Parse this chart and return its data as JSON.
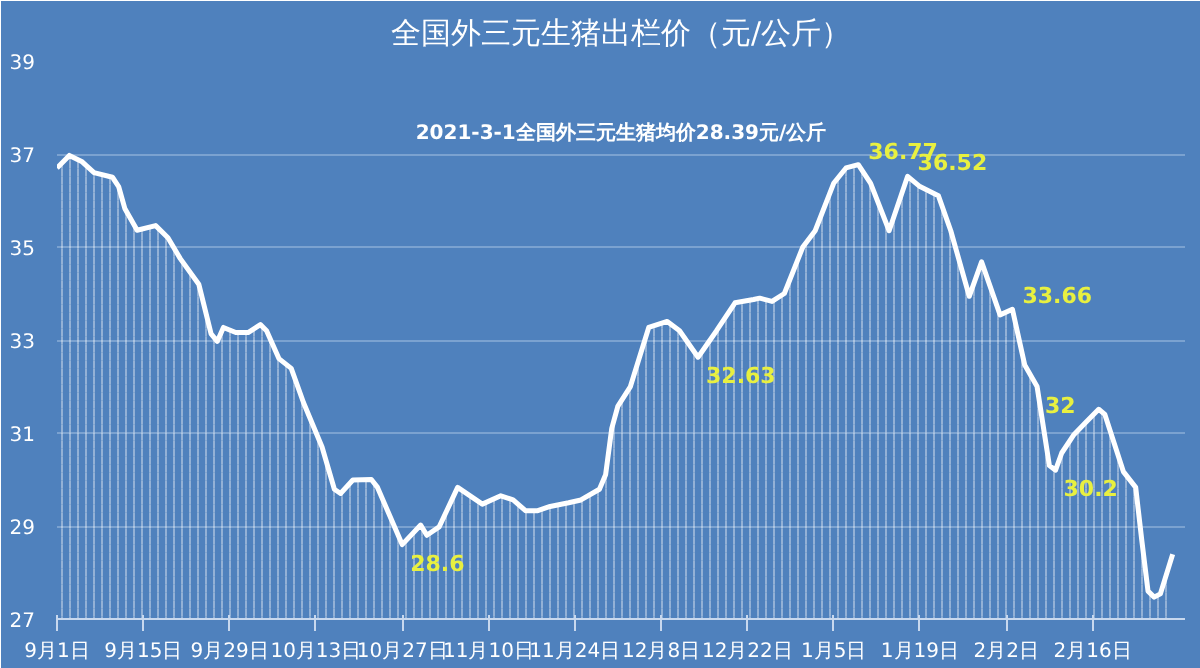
{
  "chart_data": {
    "type": "area",
    "title": "全国外三元生猪出栏价（元/公斤）",
    "annotations": [
      "2021-3-1全国外三元生猪均价28.39元/公斤",
      {
        "text": "28.6",
        "x": "2020-10-27",
        "y": 28.6
      },
      {
        "text": "32.63",
        "x": "2020-12-14",
        "y": 32.63
      },
      {
        "text": "36.77",
        "x": "2021-01-09",
        "y": 36.77
      },
      {
        "text": "36.52",
        "x": "2021-01-17",
        "y": 36.52
      },
      {
        "text": "33.66",
        "x": "2021-02-03",
        "y": 33.66
      },
      {
        "text": "32",
        "x": "2021-02-07",
        "y": 32
      },
      {
        "text": "30.2",
        "x": "2021-02-10",
        "y": 30.2
      }
    ],
    "x": [
      "2020-09-01",
      "2020-09-03",
      "2020-09-05",
      "2020-09-07",
      "2020-09-10",
      "2020-09-11",
      "2020-09-12",
      "2020-09-14",
      "2020-09-17",
      "2020-09-19",
      "2020-09-21",
      "2020-09-24",
      "2020-09-26",
      "2020-09-27",
      "2020-09-28",
      "2020-09-30",
      "2020-10-02",
      "2020-10-04",
      "2020-10-05",
      "2020-10-07",
      "2020-10-09",
      "2020-10-11",
      "2020-10-14",
      "2020-10-16",
      "2020-10-17",
      "2020-10-19",
      "2020-10-22",
      "2020-10-23",
      "2020-10-27",
      "2020-10-30",
      "2020-10-31",
      "2020-11-02",
      "2020-11-05",
      "2020-11-09",
      "2020-11-12",
      "2020-11-14",
      "2020-11-16",
      "2020-11-18",
      "2020-11-20",
      "2020-11-23",
      "2020-11-25",
      "2020-11-28",
      "2020-11-29",
      "2020-11-30",
      "2020-12-01",
      "2020-12-03",
      "2020-12-06",
      "2020-12-09",
      "2020-12-11",
      "2020-12-14",
      "2020-12-17",
      "2020-12-20",
      "2020-12-23",
      "2020-12-24",
      "2020-12-26",
      "2020-12-28",
      "2020-12-31",
      "2021-01-02",
      "2021-01-05",
      "2021-01-07",
      "2021-01-09",
      "2021-01-11",
      "2021-01-14",
      "2021-01-17",
      "2021-01-19",
      "2021-01-22",
      "2021-01-24",
      "2021-01-27",
      "2021-01-29",
      "2021-02-01",
      "2021-02-03",
      "2021-02-05",
      "2021-02-07",
      "2021-02-09",
      "2021-02-10",
      "2021-02-11",
      "2021-02-13",
      "2021-02-15",
      "2021-02-17",
      "2021-02-18",
      "2021-02-21",
      "2021-02-23",
      "2021-02-24",
      "2021-02-25",
      "2021-02-26",
      "2021-02-27",
      "2021-03-01"
    ],
    "values": [
      36.7,
      36.97,
      36.84,
      36.6,
      36.5,
      36.3,
      35.83,
      35.36,
      35.46,
      35.2,
      34.75,
      34.2,
      33.13,
      32.97,
      33.27,
      33.16,
      33.16,
      33.33,
      33.2,
      32.6,
      32.39,
      31.65,
      30.7,
      29.79,
      29.7,
      29.99,
      30.0,
      29.83,
      28.6,
      29.02,
      28.8,
      28.98,
      29.83,
      29.47,
      29.65,
      29.56,
      29.33,
      29.33,
      29.42,
      29.5,
      29.56,
      29.79,
      30.1,
      31.1,
      31.58,
      31.99,
      33.27,
      33.4,
      33.2,
      32.63,
      33.2,
      33.8,
      33.87,
      33.9,
      33.83,
      34.0,
      35.0,
      35.35,
      36.37,
      36.7,
      36.77,
      36.37,
      35.35,
      36.52,
      36.3,
      36.1,
      35.35,
      33.94,
      34.68,
      33.54,
      33.66,
      32.46,
      32.0,
      30.3,
      30.2,
      30.57,
      30.97,
      31.24,
      31.51,
      31.4,
      30.17,
      29.83,
      28.68,
      27.6,
      27.47,
      27.54,
      28.39
    ],
    "color": "#ffffff",
    "xlim": [
      "2020-09-01",
      "2021-03-03"
    ],
    "xticks": [
      {
        "value": "2020-09-01",
        "label": "9月1日"
      },
      {
        "value": "2020-09-15",
        "label": "9月15日"
      },
      {
        "value": "2020-09-29",
        "label": "9月29日"
      },
      {
        "value": "2020-10-13",
        "label": "10月13日"
      },
      {
        "value": "2020-10-27",
        "label": "10月27日"
      },
      {
        "value": "2020-11-10",
        "label": "11月10日"
      },
      {
        "value": "2020-11-24",
        "label": "11月24日"
      },
      {
        "value": "2020-12-08",
        "label": "12月8日"
      },
      {
        "value": "2020-12-22",
        "label": "12月22日"
      },
      {
        "value": "2021-01-05",
        "label": "1月5日"
      },
      {
        "value": "2021-01-19",
        "label": "1月19日"
      },
      {
        "value": "2021-02-02",
        "label": "2月2日"
      },
      {
        "value": "2021-02-16",
        "label": "2月16日"
      }
    ],
    "ylim": [
      27,
      39
    ],
    "yticks": [
      27,
      29,
      31,
      33,
      35,
      37,
      39
    ],
    "grid": "y"
  }
}
